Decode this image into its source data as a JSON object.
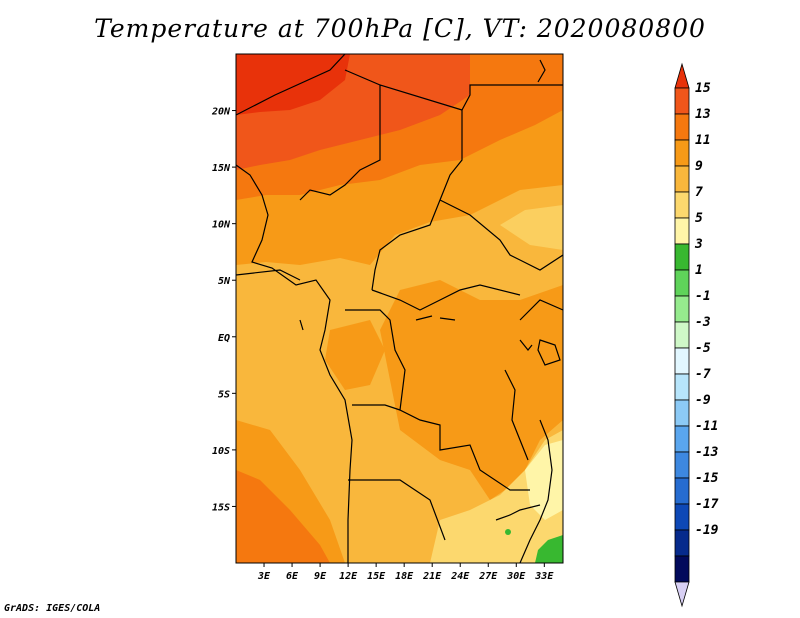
{
  "title": "Temperature at 700hPa [C], VT: 2020080800",
  "credit": "GrADS: IGES/COLA",
  "map": {
    "lon_range": [
      0,
      35
    ],
    "lat_range": [
      -20,
      25
    ],
    "lon_ticks": [
      "3E",
      "6E",
      "9E",
      "12E",
      "15E",
      "18E",
      "21E",
      "24E",
      "27E",
      "30E",
      "33E"
    ],
    "lat_ticks": [
      "20N",
      "15N",
      "10N",
      "5N",
      "EQ",
      "5S",
      "10S",
      "15S"
    ]
  },
  "colorbar": {
    "labels": [
      "15",
      "13",
      "11",
      "9",
      "7",
      "5",
      "3",
      "1",
      "-1",
      "-3",
      "-5",
      "-7",
      "-9",
      "-11",
      "-13",
      "-15",
      "-17",
      "-19"
    ],
    "colors": [
      "#e8320a",
      "#f0561a",
      "#f5780f",
      "#f79a17",
      "#f9b73c",
      "#fcd86e",
      "#fff5a8",
      "#38b830",
      "#5fd35a",
      "#96eb8e",
      "#cff8c8",
      "#e2f7ff",
      "#b7e5fb",
      "#8ccaf6",
      "#5aa6ee",
      "#3d88e0",
      "#266cd0",
      "#0d48b6",
      "#062a8c",
      "#020a5c",
      "#d8d0f4"
    ]
  }
}
